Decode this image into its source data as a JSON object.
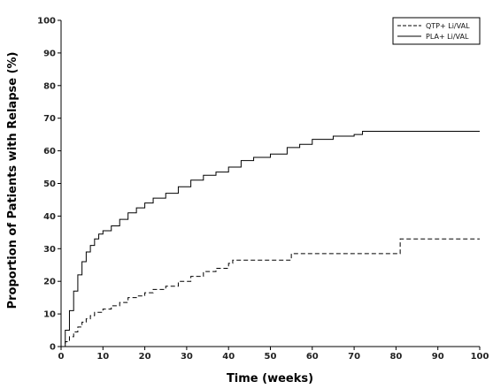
{
  "chart_data": {
    "type": "line",
    "title": "",
    "xlabel": "Time (weeks)",
    "ylabel": "Proportion of Patients with Relapse (%)",
    "xlim": [
      0,
      100
    ],
    "ylim": [
      0,
      100
    ],
    "xticks": [
      "0",
      "10",
      "20",
      "30",
      "40",
      "50",
      "60",
      "70",
      "80",
      "90",
      "100"
    ],
    "yticks": [
      "0",
      "10",
      "20",
      "30",
      "40",
      "50",
      "60",
      "70",
      "80",
      "90",
      "100"
    ],
    "grid": false,
    "legend_position": "top-right",
    "series": [
      {
        "name": "QTP+ Li/VAL",
        "style": "dashed",
        "color": "#000000",
        "x": [
          0,
          1,
          2,
          3,
          4,
          5,
          6,
          7,
          8,
          10,
          12,
          14,
          16,
          18,
          20,
          22,
          25,
          28,
          31,
          34,
          37,
          40,
          41,
          45,
          50,
          54,
          55,
          60,
          70,
          80,
          81,
          90,
          100
        ],
        "y": [
          0,
          1.5,
          3,
          4.5,
          6,
          7.5,
          8.5,
          9.5,
          10.5,
          11.5,
          12.5,
          13.5,
          15,
          15.5,
          16.5,
          17.5,
          18.5,
          20,
          21.5,
          23,
          24,
          25.5,
          26.5,
          26.5,
          26.5,
          26.5,
          28.5,
          28.5,
          28.5,
          28.5,
          33,
          33,
          33
        ]
      },
      {
        "name": "PLA+ Li/VAL",
        "style": "solid",
        "color": "#000000",
        "x": [
          0,
          1,
          2,
          3,
          4,
          5,
          6,
          7,
          8,
          9,
          10,
          12,
          14,
          16,
          18,
          20,
          22,
          25,
          28,
          31,
          34,
          37,
          40,
          43,
          46,
          50,
          54,
          57,
          60,
          65,
          70,
          72,
          80,
          90,
          100
        ],
        "y": [
          0,
          5,
          11,
          17,
          22,
          26,
          29,
          31,
          33,
          34.5,
          35.5,
          37,
          39,
          41,
          42.5,
          44,
          45.5,
          47,
          49,
          51,
          52.5,
          53.5,
          55,
          57,
          58,
          59,
          61,
          62,
          63.5,
          64.5,
          65,
          66,
          66,
          66,
          66
        ]
      }
    ]
  }
}
